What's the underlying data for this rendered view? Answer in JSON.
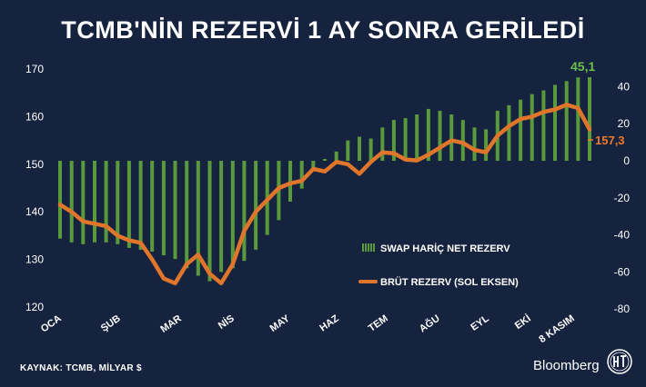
{
  "title": "TCMB'NİN REZERVİ 1 AY SONRA GERİLEDİ",
  "source": "KAYNAK: TCMB, MİLYAR $",
  "brand": "Bloomberg",
  "colors": {
    "background": "#15233f",
    "bars": "#5a9a3c",
    "line": "#e0762b",
    "bar_label": "#6cbf4a",
    "line_label": "#f07a2a"
  },
  "chart_data": {
    "type": "bar+line",
    "x_tick_labels": [
      "OCA",
      "ŞUB",
      "MAR",
      "NİS",
      "MAY",
      "HAZ",
      "TEM",
      "AĞU",
      "EYL",
      "EKİ",
      "8 KASIM"
    ],
    "left_axis": {
      "label": "",
      "ylim": [
        120,
        170
      ],
      "ticks": [
        120,
        130,
        140,
        150,
        160,
        170
      ]
    },
    "right_axis": {
      "label": "",
      "ylim": [
        -80,
        45
      ],
      "ticks": [
        -80,
        -60,
        -40,
        -20,
        0,
        20,
        40
      ]
    },
    "series": [
      {
        "name": "SWAP HARİÇ NET REZERV",
        "type": "bar",
        "axis": "right",
        "values": [
          -42,
          -44,
          -45,
          -44,
          -44,
          -45,
          -47,
          -48,
          -49,
          -51,
          -53,
          -58,
          -62,
          -65,
          -60,
          -58,
          -54,
          -48,
          -40,
          -32,
          -22,
          -15,
          -4,
          1,
          5,
          11,
          13,
          12,
          18,
          22,
          23,
          25,
          28,
          27,
          25,
          22,
          18,
          17,
          27,
          30,
          33,
          36,
          38,
          41,
          43,
          45,
          45.1
        ]
      },
      {
        "name": "BRÜT REZERV (SOL EKSEN)",
        "type": "line",
        "axis": "left",
        "values": [
          141.5,
          140,
          138,
          137.5,
          137,
          135,
          134,
          133.5,
          130,
          126,
          125,
          129,
          131,
          127,
          125,
          129,
          136,
          140,
          142.5,
          145,
          146,
          146.5,
          149,
          148.5,
          150.5,
          150,
          148,
          150.5,
          152.5,
          152.3,
          151,
          150.8,
          152,
          153.5,
          155,
          154.5,
          153,
          152.5,
          156,
          158,
          159.5,
          160,
          161,
          161.5,
          162.5,
          161.8,
          157.3
        ]
      }
    ],
    "annotations": {
      "bar_last_label": "45,1",
      "line_last_label": "157,3"
    },
    "legend": {
      "position": "right-middle",
      "items": [
        "SWAP HARİÇ NET REZERV",
        "BRÜT REZERV (SOL EKSEN)"
      ]
    },
    "grid": false
  }
}
